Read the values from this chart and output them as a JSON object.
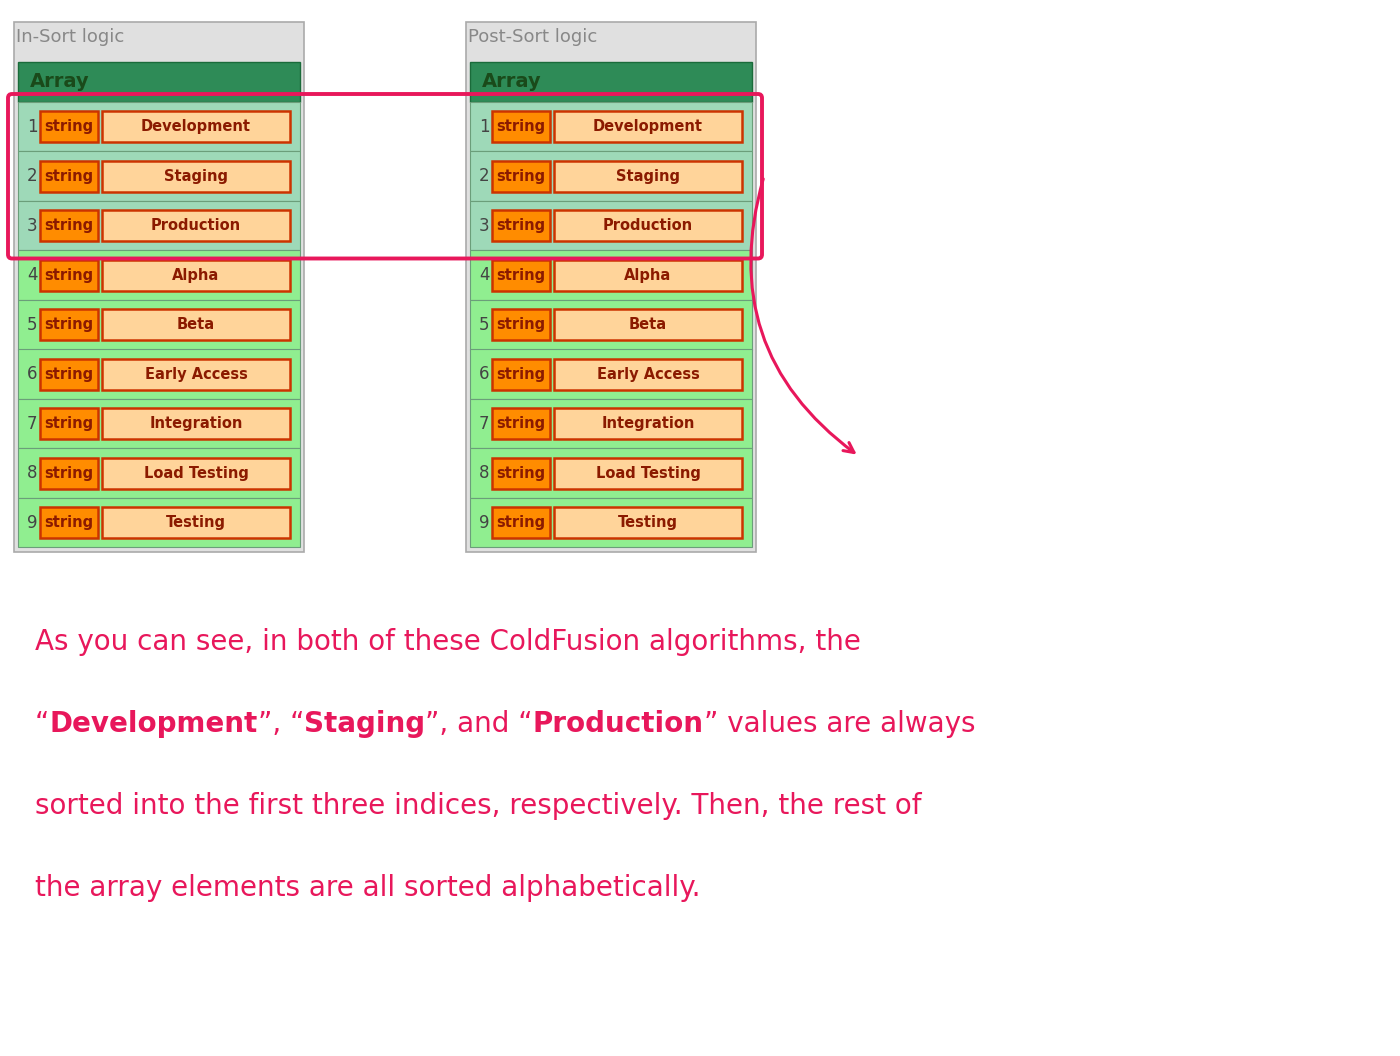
{
  "title_left": "In-Sort logic",
  "title_right": "Post-Sort logic",
  "array_header": "Array",
  "items": [
    "Development",
    "Staging",
    "Production",
    "Alpha",
    "Beta",
    "Early Access",
    "Integration",
    "Load Testing",
    "Testing"
  ],
  "indices": [
    1,
    2,
    3,
    4,
    5,
    6,
    7,
    8,
    9
  ],
  "highlight_rows": [
    0,
    1,
    2
  ],
  "col_outer_bg": "#E0E0E0",
  "col_outer_border": "#AAAAAA",
  "col_header_bg": "#2E8B57",
  "col_header_text": "#1A4A1A",
  "col_row_bg": "#90EE90",
  "col_row_alt": "#A8DFC0",
  "col_orange": "#FF8C00",
  "col_peach": "#FFD49A",
  "col_cell_border": "#CC3300",
  "col_highlight": "#E8175B",
  "col_text_dark": "#8B1A00",
  "col_title_text": "#888888",
  "col_caption": "#E8175B",
  "caption_line1": "As you can see, in both of these ColdFusion algorithms, the",
  "caption_line3": "sorted into the first three indices, respectively. Then, the rest of",
  "caption_line4": "the array elements are all sorted alphabetically.",
  "fig_w": 14.0,
  "fig_h": 10.56,
  "dpi": 100
}
